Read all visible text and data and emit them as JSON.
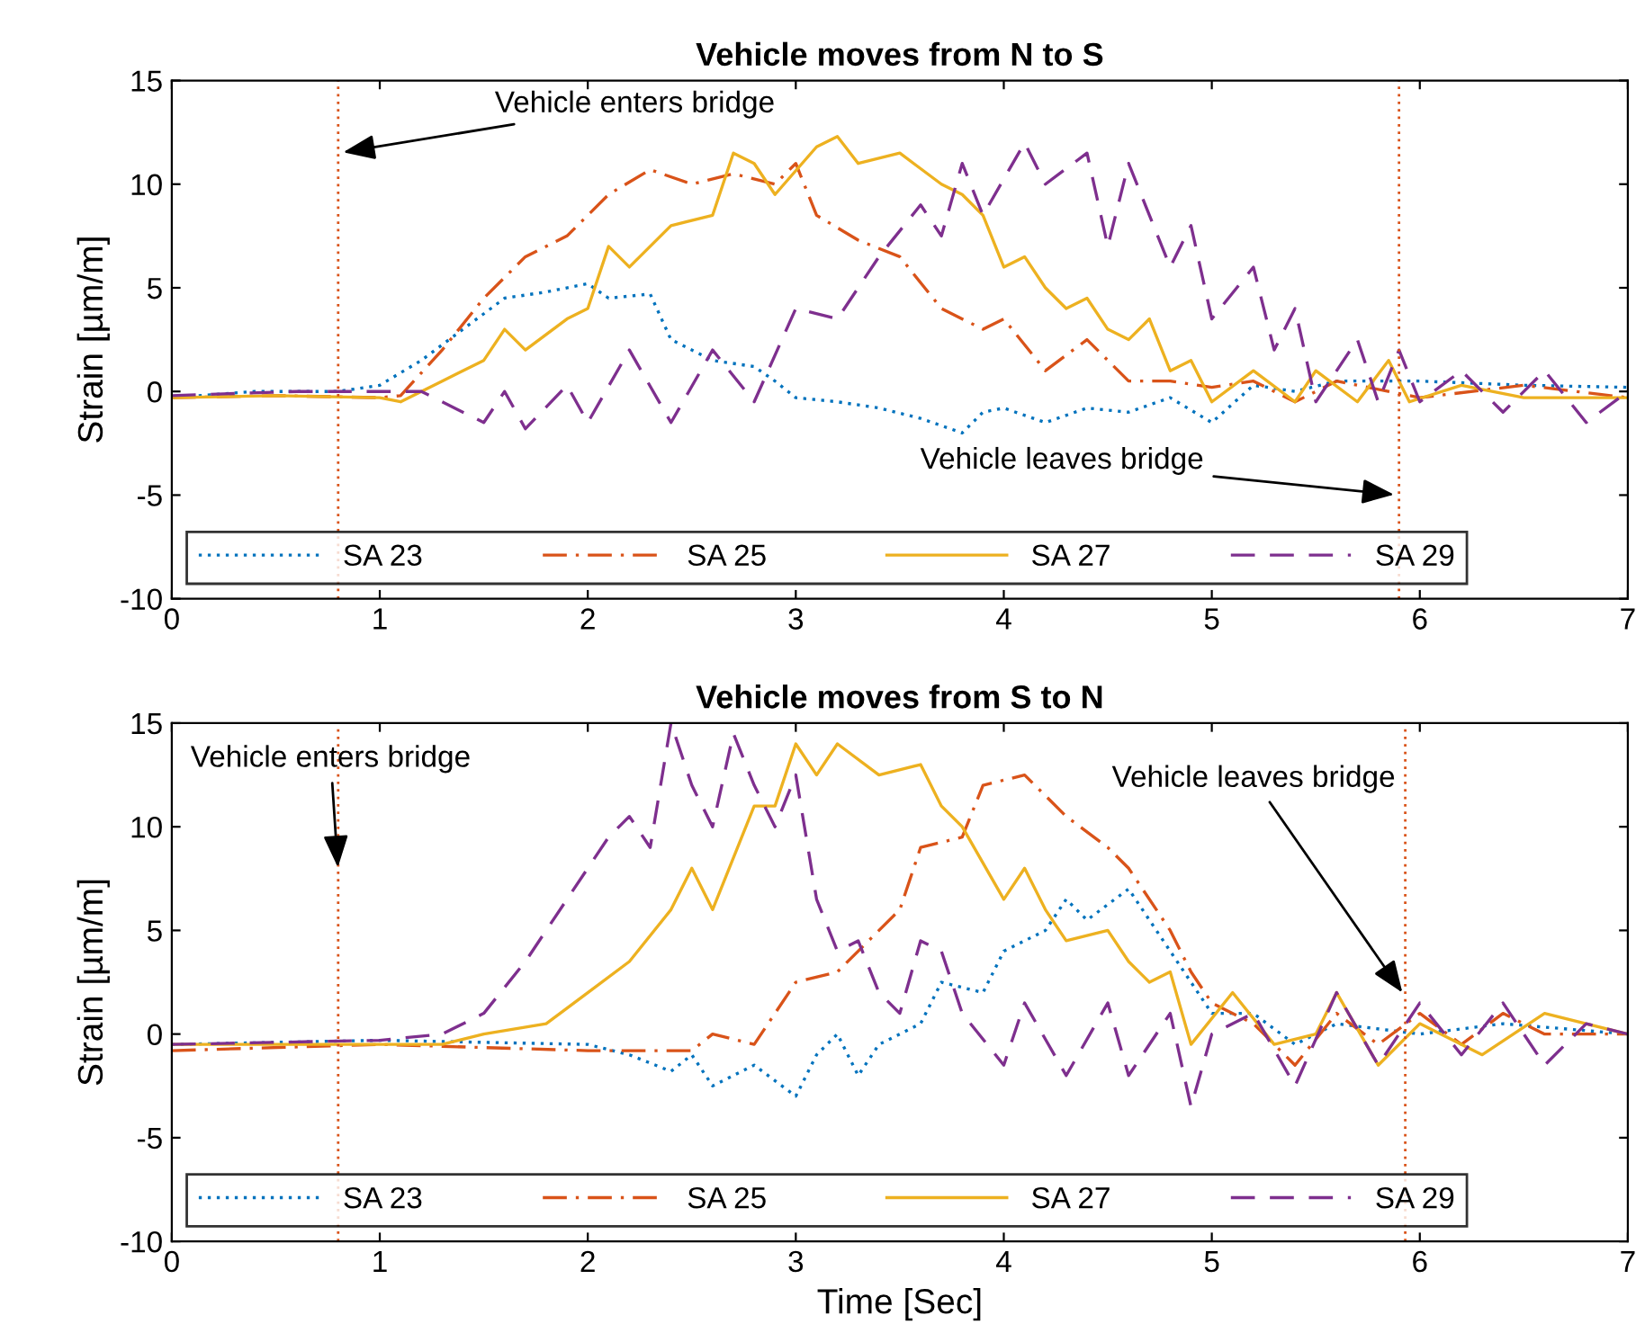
{
  "chart_data": [
    {
      "type": "line",
      "title": "Vehicle moves from N to S",
      "ylabel": "Strain [µm/m]",
      "xlim": [
        0,
        7
      ],
      "ylim": [
        -10,
        15
      ],
      "xticks": [
        0,
        1,
        2,
        3,
        4,
        5,
        6,
        7
      ],
      "yticks": [
        -10,
        -5,
        0,
        5,
        10,
        15
      ],
      "grid": false,
      "legend": "bottom left",
      "marker": "none",
      "ref_lines": [
        {
          "axis": "x",
          "value": 0.8,
          "color": "#d95319",
          "line_style": "dotted"
        },
        {
          "axis": "x",
          "value": 5.9,
          "color": "#d95319",
          "line_style": "dotted"
        }
      ],
      "annotations": [
        {
          "text": "Vehicle enters bridge",
          "x": 0.8,
          "y": 11.5
        },
        {
          "text": "Vehicle leaves bridge",
          "x": 5.9,
          "y": -5
        }
      ],
      "series": [
        {
          "name": "SA 23",
          "color": "#0072bd",
          "line_style": "dotted",
          "x": [
            0,
            0.4,
            0.8,
            1,
            1.2,
            1.4,
            1.6,
            1.8,
            2,
            2.1,
            2.3,
            2.4,
            2.6,
            2.8,
            2.9,
            3,
            3.2,
            3.4,
            3.6,
            3.8,
            3.9,
            4,
            4.2,
            4.4,
            4.6,
            4.8,
            5,
            5.2,
            5.4,
            5.6,
            6,
            6.5,
            7
          ],
          "values": [
            -0.3,
            0,
            0,
            0.3,
            1.5,
            3,
            4.5,
            4.8,
            5.2,
            4.5,
            4.7,
            2.5,
            1.5,
            1.2,
            0.5,
            -0.3,
            -0.5,
            -0.8,
            -1.3,
            -2,
            -1,
            -0.8,
            -1.5,
            -0.8,
            -1,
            -0.3,
            -1.5,
            0.3,
            0,
            0.5,
            0.5,
            0.3,
            0.2
          ]
        },
        {
          "name": "SA 25",
          "color": "#d95319",
          "line_style": "dashdot",
          "x": [
            0,
            0.5,
            1,
            1.1,
            1.3,
            1.5,
            1.7,
            1.9,
            2.1,
            2.3,
            2.5,
            2.7,
            2.9,
            3,
            3.1,
            3.3,
            3.5,
            3.7,
            3.9,
            4,
            4.2,
            4.4,
            4.6,
            4.8,
            5,
            5.2,
            5.4,
            5.6,
            6,
            6.5,
            7
          ],
          "values": [
            -0.3,
            -0.2,
            -0.3,
            -0.2,
            2,
            4.5,
            6.5,
            7.5,
            9.5,
            10.7,
            10,
            10.5,
            10,
            11,
            8.5,
            7.3,
            6.5,
            4,
            3,
            3.5,
            1,
            2.5,
            0.5,
            0.5,
            0.2,
            0.5,
            -0.5,
            0.5,
            -0.3,
            0.3,
            -0.3
          ]
        },
        {
          "name": "SA 27",
          "color": "#edb120",
          "line_style": "solid",
          "x": [
            0,
            0.5,
            1,
            1.1,
            1.3,
            1.5,
            1.6,
            1.7,
            1.9,
            2,
            2.1,
            2.2,
            2.4,
            2.6,
            2.7,
            2.8,
            2.9,
            3.1,
            3.2,
            3.3,
            3.5,
            3.7,
            3.8,
            3.9,
            4,
            4.1,
            4.2,
            4.3,
            4.4,
            4.5,
            4.6,
            4.7,
            4.8,
            4.9,
            5,
            5.2,
            5.4,
            5.5,
            5.7,
            5.85,
            5.95,
            6.2,
            6.5,
            7
          ],
          "values": [
            -0.3,
            -0.2,
            -0.3,
            -0.5,
            0.5,
            1.5,
            3,
            2,
            3.5,
            4,
            7,
            6,
            8,
            8.5,
            11.5,
            11,
            9.5,
            11.8,
            12.3,
            11,
            11.5,
            10,
            9.5,
            8.5,
            6,
            6.5,
            5,
            4,
            4.5,
            3,
            2.5,
            3.5,
            1,
            1.5,
            -0.5,
            1,
            -0.5,
            1,
            -0.5,
            1.5,
            -0.5,
            0.3,
            -0.3,
            -0.3
          ]
        },
        {
          "name": "SA 29",
          "color": "#7e2f8e",
          "line_style": "dashed",
          "x": [
            0,
            0.6,
            1.2,
            1.3,
            1.5,
            1.6,
            1.7,
            1.9,
            2,
            2.2,
            2.4,
            2.6,
            2.8,
            3,
            3.2,
            3.4,
            3.6,
            3.7,
            3.8,
            3.9,
            4.1,
            4.2,
            4.4,
            4.5,
            4.6,
            4.8,
            4.9,
            5,
            5.2,
            5.3,
            5.4,
            5.5,
            5.7,
            5.8,
            5.9,
            6,
            6.2,
            6.4,
            6.6,
            6.8,
            7
          ],
          "values": [
            -0.2,
            0,
            0,
            -0.5,
            -1.5,
            0,
            -1.8,
            0.3,
            -1.5,
            2,
            -1.5,
            2,
            -0.5,
            4,
            3.5,
            6.5,
            9,
            7.5,
            11,
            8.5,
            12,
            10,
            11.5,
            7,
            11,
            6,
            8,
            3.5,
            6,
            2,
            4,
            -0.5,
            2.5,
            -0.5,
            2,
            -0.5,
            1,
            -1,
            1,
            -1.5,
            0
          ]
        }
      ]
    },
    {
      "type": "line",
      "title": "Vehicle moves from S to N",
      "xlabel": "Time [Sec]",
      "ylabel": "Strain [µm/m]",
      "xlim": [
        0,
        7
      ],
      "ylim": [
        -10,
        15
      ],
      "xticks": [
        0,
        1,
        2,
        3,
        4,
        5,
        6,
        7
      ],
      "yticks": [
        -10,
        -5,
        0,
        5,
        10,
        15
      ],
      "grid": false,
      "legend": "bottom left",
      "marker": "none",
      "ref_lines": [
        {
          "axis": "x",
          "value": 0.8,
          "color": "#d95319",
          "line_style": "dotted"
        },
        {
          "axis": "x",
          "value": 5.93,
          "color": "#d95319",
          "line_style": "dotted"
        }
      ],
      "annotations": [
        {
          "text": "Vehicle enters bridge",
          "x": 0.8,
          "y": 7.8
        },
        {
          "text": "Vehicle leaves bridge",
          "x": 5.93,
          "y": 1.8
        }
      ],
      "series": [
        {
          "name": "SA 23",
          "color": "#0072bd",
          "line_style": "dotted",
          "x": [
            0,
            1,
            2,
            2.2,
            2.4,
            2.5,
            2.6,
            2.8,
            3,
            3.1,
            3.2,
            3.3,
            3.4,
            3.6,
            3.7,
            3.9,
            4,
            4.2,
            4.3,
            4.4,
            4.6,
            4.8,
            5,
            5.2,
            5.4,
            5.6,
            6,
            6.4,
            7
          ],
          "values": [
            -0.5,
            -0.3,
            -0.5,
            -1,
            -1.8,
            -1,
            -2.5,
            -1.5,
            -3,
            -1,
            0,
            -2,
            -0.5,
            0.5,
            2.5,
            2,
            4,
            5,
            6.5,
            5.5,
            7,
            4,
            1,
            1,
            -0.5,
            0.5,
            0,
            0.5,
            0
          ]
        },
        {
          "name": "SA 25",
          "color": "#d95319",
          "line_style": "dashdot",
          "x": [
            0,
            1,
            2,
            2.5,
            2.6,
            2.8,
            3,
            3.2,
            3.4,
            3.5,
            3.6,
            3.8,
            3.9,
            4.1,
            4.3,
            4.5,
            4.6,
            4.8,
            4.9,
            5,
            5.2,
            5.4,
            5.6,
            5.8,
            6,
            6.2,
            6.4,
            6.6,
            7
          ],
          "values": [
            -0.8,
            -0.5,
            -0.8,
            -0.8,
            0,
            -0.5,
            2.5,
            3,
            5,
            6,
            9,
            9.5,
            12,
            12.5,
            10.5,
            9,
            8,
            5,
            3,
            1.5,
            0.5,
            -1.5,
            1,
            -0.5,
            1,
            -0.5,
            1,
            0,
            0
          ]
        },
        {
          "name": "SA 27",
          "color": "#edb120",
          "line_style": "solid",
          "x": [
            0,
            0.7,
            1.3,
            1.5,
            1.8,
            2,
            2.2,
            2.4,
            2.5,
            2.6,
            2.8,
            2.9,
            3,
            3.1,
            3.2,
            3.4,
            3.6,
            3.7,
            3.8,
            4,
            4.1,
            4.2,
            4.3,
            4.5,
            4.6,
            4.7,
            4.8,
            4.9,
            5.1,
            5.3,
            5.5,
            5.6,
            5.8,
            6,
            6.3,
            6.6,
            7
          ],
          "values": [
            -0.5,
            -0.5,
            -0.5,
            0,
            0.5,
            2,
            3.5,
            6,
            8,
            6,
            11,
            11,
            14,
            12.5,
            14,
            12.5,
            13,
            11,
            10,
            6.5,
            8,
            6,
            4.5,
            5,
            3.5,
            2.5,
            3,
            -0.5,
            2,
            -0.5,
            0,
            2,
            -1.5,
            0.5,
            -1,
            1,
            0
          ]
        },
        {
          "name": "SA 29",
          "color": "#7e2f8e",
          "line_style": "dashed",
          "x": [
            0,
            1,
            1.3,
            1.5,
            1.7,
            1.9,
            2.1,
            2.2,
            2.3,
            2.4,
            2.5,
            2.6,
            2.7,
            2.8,
            2.9,
            3,
            3.1,
            3.2,
            3.3,
            3.4,
            3.5,
            3.6,
            3.7,
            3.8,
            4,
            4.1,
            4.3,
            4.5,
            4.6,
            4.8,
            4.9,
            5,
            5.2,
            5.4,
            5.6,
            5.8,
            6,
            6.2,
            6.4,
            6.6,
            6.8,
            7
          ],
          "values": [
            -0.5,
            -0.3,
            0,
            1,
            3.5,
            6.5,
            9.5,
            10.5,
            9,
            15,
            12,
            10,
            14.5,
            12,
            10,
            12.5,
            6.5,
            4,
            4.5,
            2,
            1,
            4.5,
            4,
            1,
            -1.5,
            1.5,
            -2,
            1.5,
            -2,
            1,
            -3.5,
            0,
            1,
            -2.5,
            2,
            -1.5,
            1.5,
            -1,
            1.5,
            -1.5,
            0.5,
            0
          ]
        }
      ]
    }
  ]
}
